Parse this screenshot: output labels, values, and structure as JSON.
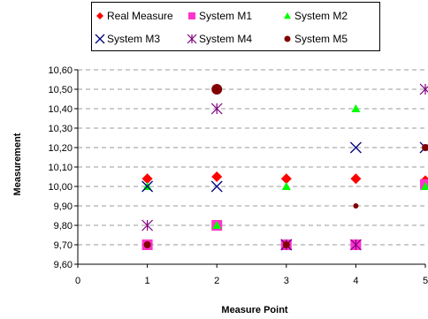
{
  "chart_data": {
    "type": "scatter",
    "xlabel": "Measure Point",
    "ylabel": "Measurement",
    "xlim": [
      0,
      5
    ],
    "ylim": [
      9.6,
      10.6
    ],
    "x_ticks": [
      "0",
      "1",
      "2",
      "3",
      "4",
      "5"
    ],
    "y_ticks": [
      "9,60",
      "9,70",
      "9,80",
      "9,90",
      "10,00",
      "10,10",
      "10,20",
      "10,30",
      "10,40",
      "10,50",
      "10,60"
    ],
    "grid": "horizontal dashed",
    "legend_position": "top",
    "series": [
      {
        "name": "Real Measure",
        "marker": "diamond",
        "color": "#ff0000",
        "x": [
          1,
          2,
          3,
          4,
          5
        ],
        "y": [
          10.04,
          10.05,
          10.04,
          10.04,
          10.03
        ]
      },
      {
        "name": "System M1",
        "marker": "square",
        "color": "#ff33cc",
        "x": [
          1,
          2,
          3,
          4,
          5
        ],
        "y": [
          9.7,
          9.8,
          9.7,
          9.7,
          10.01
        ]
      },
      {
        "name": "System M2",
        "marker": "triangle",
        "color": "#00ff00",
        "x": [
          1,
          2,
          3,
          4,
          5
        ],
        "y": [
          10.0,
          9.8,
          10.0,
          10.4,
          10.0
        ]
      },
      {
        "name": "System M3",
        "marker": "x",
        "color": "#000080",
        "x": [
          1,
          2,
          3,
          4,
          5
        ],
        "y": [
          10.0,
          10.0,
          9.7,
          10.2,
          10.2
        ]
      },
      {
        "name": "System M4",
        "marker": "star",
        "color": "#800080",
        "x": [
          1,
          2,
          3,
          4,
          5
        ],
        "y": [
          9.8,
          10.4,
          9.7,
          9.7,
          10.5
        ]
      },
      {
        "name": "System M5",
        "marker": "circle",
        "color": "#800000",
        "x": [
          1,
          2,
          3,
          4,
          5
        ],
        "y": [
          9.7,
          10.5,
          9.7,
          9.9,
          10.2
        ],
        "sizes": [
          4,
          6,
          4,
          3,
          4
        ]
      }
    ]
  }
}
